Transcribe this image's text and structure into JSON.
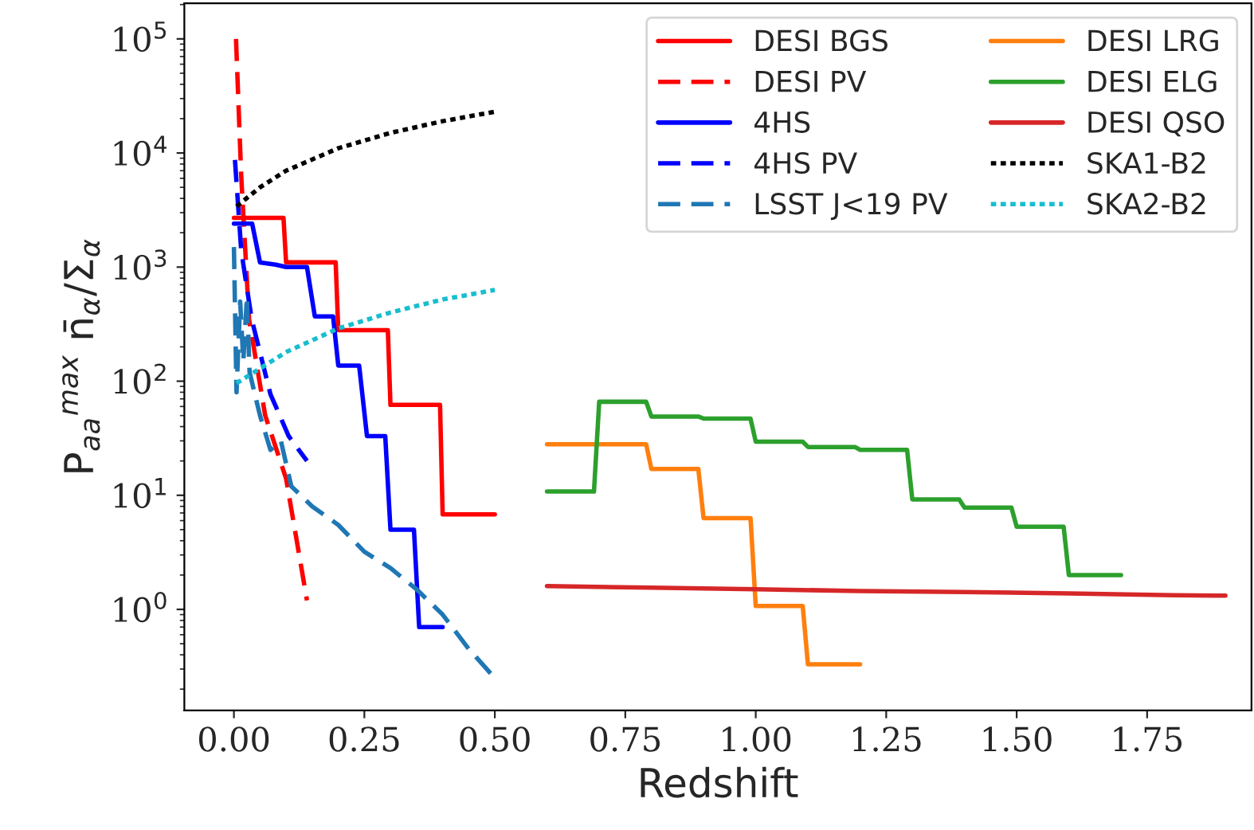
{
  "chart_data": {
    "type": "line",
    "xlabel": "Redshift",
    "ylabel": "P$_{aa}$$^{max}$ n̄$_{α}$/Σ$_{α}$",
    "log": "y",
    "xlim": [
      -0.095,
      1.95
    ],
    "ylim": [
      0.13,
      205000
    ],
    "xticks": [
      {
        "value": 0,
        "label": "0.00"
      },
      0.25,
      {
        "value": 0.5,
        "label": "0.50"
      },
      0.75,
      {
        "value": 1,
        "label": "1.00"
      },
      1.25,
      {
        "value": 1.5,
        "label": "1.50"
      },
      1.75
    ],
    "yticks": [
      {
        "value": 1,
        "label": "10$^{0}$"
      },
      {
        "value": 10,
        "label": "10$^{1}$"
      },
      {
        "value": 100,
        "label": "10$^{2}$"
      },
      {
        "value": 1000,
        "label": "10$^{3}$"
      },
      {
        "value": 10000,
        "label": "10$^{4}$"
      },
      {
        "value": 100000,
        "label": "10$^{5}$"
      }
    ],
    "grid": false,
    "legend": "top right",
    "series": [
      {
        "name": "DESI BGS",
        "color": "#ff0000",
        "line_style": "solid",
        "x": [
          0,
          0.095,
          0.1,
          0.195,
          0.2,
          0.295,
          0.3,
          0.395,
          0.4,
          0.5
        ],
        "values": [
          2700,
          2700,
          1100,
          1100,
          280,
          280,
          62,
          62,
          6.8,
          6.8
        ]
      },
      {
        "name": "DESI PV",
        "color": "#ff0000",
        "line_style": "dashed",
        "x": [
          0.004,
          0.014,
          0.029,
          0.06,
          0.1,
          0.14
        ],
        "values": [
          100000,
          6300,
          350,
          50,
          14,
          1.2
        ]
      },
      {
        "name": "4HS",
        "color": "#0000ff",
        "line_style": "solid",
        "x": [
          0,
          0.035,
          0.05,
          0.08,
          0.1,
          0.14,
          0.155,
          0.19,
          0.2,
          0.24,
          0.255,
          0.29,
          0.3,
          0.345,
          0.355,
          0.4
        ],
        "values": [
          2400,
          2400,
          1100,
          1050,
          1000,
          1000,
          370,
          370,
          137,
          137,
          33,
          33,
          5,
          5,
          0.7,
          0.7
        ]
      },
      {
        "name": "4HS PV",
        "color": "#0000ff",
        "line_style": "dashed",
        "x": [
          0.002,
          0.014,
          0.034,
          0.07,
          0.105,
          0.14
        ],
        "values": [
          8700,
          1400,
          350,
          77,
          33,
          20
        ]
      },
      {
        "name": "LSST J<19 PV",
        "color": "#1f77b4",
        "line_style": "dashed",
        "x": [
          0,
          0.005,
          0.012,
          0.018,
          0.025,
          0.03,
          0.05,
          0.07,
          0.09,
          0.11,
          0.15,
          0.2,
          0.25,
          0.3,
          0.35,
          0.4,
          0.45,
          0.5
        ],
        "values": [
          1500,
          80,
          500,
          150,
          550,
          120,
          50,
          25,
          30,
          12,
          8,
          5.5,
          3.2,
          2.3,
          1.5,
          0.9,
          0.45,
          0.25
        ]
      },
      {
        "name": "DESI LRG",
        "color": "#ff7f0e",
        "line_style": "solid",
        "x": [
          0.6,
          0.79,
          0.8,
          0.89,
          0.9,
          0.99,
          1.0,
          1.09,
          1.1,
          1.2
        ],
        "values": [
          28,
          28,
          17,
          17,
          6.3,
          6.3,
          1.07,
          1.07,
          0.33,
          0.33
        ]
      },
      {
        "name": "DESI ELG",
        "color": "#2ca02c",
        "line_style": "solid",
        "x": [
          0.6,
          0.69,
          0.7,
          0.79,
          0.8,
          0.89,
          0.9,
          0.99,
          1.0,
          1.09,
          1.1,
          1.19,
          1.2,
          1.29,
          1.3,
          1.39,
          1.4,
          1.49,
          1.5,
          1.59,
          1.6,
          1.7
        ],
        "values": [
          10.8,
          10.8,
          66,
          66,
          49,
          49,
          47,
          47,
          29.5,
          29.5,
          26.5,
          26.5,
          25,
          25,
          9.2,
          9.2,
          7.8,
          7.8,
          5.3,
          5.3,
          2,
          2
        ]
      },
      {
        "name": "DESI QSO",
        "color": "#d62728",
        "line_style": "solid",
        "x": [
          0.6,
          0.8,
          1.0,
          1.2,
          1.4,
          1.6,
          1.8,
          1.9
        ],
        "values": [
          1.6,
          1.55,
          1.5,
          1.45,
          1.42,
          1.38,
          1.33,
          1.32
        ]
      },
      {
        "name": "SKA1-B2",
        "color": "#000000",
        "line_style": "dotted",
        "x": [
          0.005,
          0.05,
          0.1,
          0.2,
          0.3,
          0.4,
          0.5
        ],
        "values": [
          3400,
          5000,
          7000,
          11000,
          15000,
          19000,
          23000
        ]
      },
      {
        "name": "SKA2-B2",
        "color": "#17becf",
        "line_style": "dotted",
        "x": [
          0.005,
          0.1,
          0.2,
          0.3,
          0.4,
          0.5
        ],
        "values": [
          96,
          180,
          290,
          400,
          520,
          630
        ]
      }
    ]
  }
}
